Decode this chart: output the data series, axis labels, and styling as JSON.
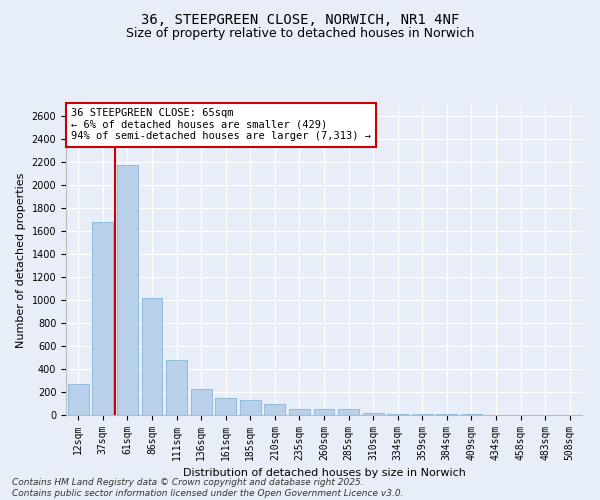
{
  "title_line1": "36, STEEPGREEN CLOSE, NORWICH, NR1 4NF",
  "title_line2": "Size of property relative to detached houses in Norwich",
  "xlabel": "Distribution of detached houses by size in Norwich",
  "ylabel": "Number of detached properties",
  "categories": [
    "12sqm",
    "37sqm",
    "61sqm",
    "86sqm",
    "111sqm",
    "136sqm",
    "161sqm",
    "185sqm",
    "210sqm",
    "235sqm",
    "260sqm",
    "285sqm",
    "310sqm",
    "334sqm",
    "359sqm",
    "384sqm",
    "409sqm",
    "434sqm",
    "458sqm",
    "483sqm",
    "508sqm"
  ],
  "values": [
    270,
    1680,
    2180,
    1020,
    480,
    230,
    145,
    130,
    100,
    55,
    55,
    50,
    20,
    10,
    10,
    5,
    5,
    2,
    2,
    2,
    2
  ],
  "bar_color": "#b8d0ea",
  "bar_edge_color": "#7aafd4",
  "vline_x_index": 2,
  "vline_color": "#cc0000",
  "annotation_box_text": "36 STEEPGREEN CLOSE: 65sqm\n← 6% of detached houses are smaller (429)\n94% of semi-detached houses are larger (7,313) →",
  "annotation_fill_color": "#ffffff",
  "annotation_edge_color": "#cc0000",
  "footnote": "Contains HM Land Registry data © Crown copyright and database right 2025.\nContains public sector information licensed under the Open Government Licence v3.0.",
  "ylim": [
    0,
    2700
  ],
  "yticks": [
    0,
    200,
    400,
    600,
    800,
    1000,
    1200,
    1400,
    1600,
    1800,
    2000,
    2200,
    2400,
    2600
  ],
  "bg_color": "#e8eef8",
  "plot_bg_color": "#e8eef8",
  "grid_color": "#ffffff",
  "title_fontsize": 10,
  "subtitle_fontsize": 9,
  "axis_label_fontsize": 8,
  "tick_fontsize": 7,
  "annotation_fontsize": 7.5,
  "footnote_fontsize": 6.5
}
